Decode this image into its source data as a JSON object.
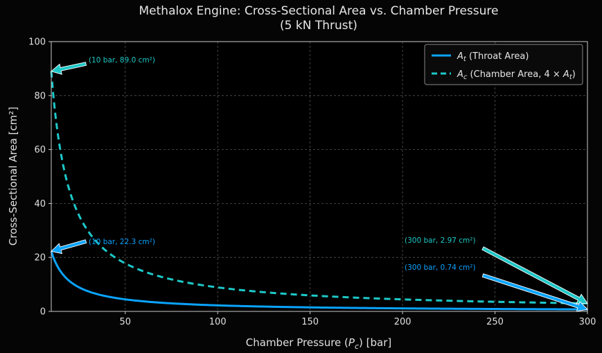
{
  "chart_data": {
    "type": "line",
    "title": "Methalox Engine: Cross-Sectional Area vs. Chamber Pressure",
    "subtitle": "(5 kN Thrust)",
    "xlabel_main": "Chamber Pressure (",
    "xlabel_sym": "P",
    "xlabel_sub": "c",
    "xlabel_tail": ") [bar]",
    "ylabel": "Cross-Sectional Area [cm²]",
    "xlim": [
      10,
      300
    ],
    "ylim": [
      0,
      100
    ],
    "xticks": [
      50,
      100,
      150,
      200,
      250,
      300
    ],
    "yticks": [
      0,
      20,
      40,
      60,
      80,
      100
    ],
    "grid": true,
    "legend_position": "top-right",
    "colors": {
      "throat": "#0aa4ff",
      "chamber": "#1ec8c8",
      "background": "#000000",
      "grid": "#555555"
    },
    "series": [
      {
        "name": "A_t (Throat Area)",
        "legend_sym": "A",
        "legend_sub": "t",
        "legend_rest": " (Throat Area)",
        "style": "solid",
        "x": [
          10,
          12,
          15,
          20,
          25,
          30,
          40,
          50,
          60,
          70,
          80,
          100,
          120,
          150,
          200,
          250,
          300
        ],
        "y": [
          22.3,
          18.58,
          14.87,
          11.15,
          8.92,
          7.43,
          5.58,
          4.46,
          3.72,
          3.19,
          2.79,
          2.23,
          1.86,
          1.49,
          1.12,
          0.89,
          0.74
        ]
      },
      {
        "name": "A_c (Chamber Area, 4 × A_t)",
        "legend_sym": "A",
        "legend_sub": "c",
        "legend_rest": " (Chamber Area, 4 × ",
        "legend_sym2": "A",
        "legend_sub2": "t",
        "legend_close": ")",
        "style": "dashed",
        "x": [
          10,
          12,
          15,
          20,
          25,
          30,
          40,
          50,
          60,
          70,
          80,
          100,
          120,
          150,
          200,
          250,
          300
        ],
        "y": [
          89.0,
          74.17,
          59.33,
          44.5,
          35.6,
          29.67,
          22.25,
          17.8,
          14.83,
          12.71,
          11.13,
          8.9,
          7.42,
          5.93,
          4.45,
          3.56,
          2.97
        ]
      }
    ],
    "annotations": [
      {
        "text": "(10 bar, 89.0 cm²)",
        "series": 1,
        "point": [
          10,
          89.0
        ],
        "color": "#1ec8c8"
      },
      {
        "text": "(10 bar, 22.3 cm²)",
        "series": 0,
        "point": [
          10,
          22.3
        ],
        "color": "#0aa4ff"
      },
      {
        "text": "(300 bar, 2.97 cm²)",
        "series": 1,
        "point": [
          300,
          2.97
        ],
        "color": "#1ec8c8"
      },
      {
        "text": "(300 bar, 0.74 cm²)",
        "series": 0,
        "point": [
          300,
          0.74
        ],
        "color": "#0aa4ff"
      }
    ]
  }
}
